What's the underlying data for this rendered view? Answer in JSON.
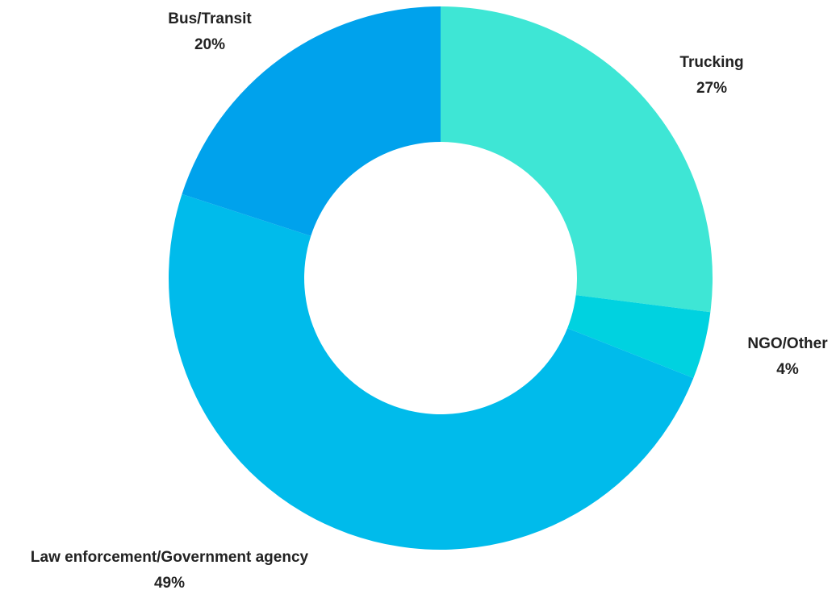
{
  "chart_data": {
    "type": "pie",
    "donut": true,
    "title": "",
    "categories": [
      "Trucking",
      "NGO/Other",
      "Law enforcement/Government agency",
      "Bus/Transit"
    ],
    "values": [
      27,
      4,
      49,
      20
    ],
    "value_labels": [
      "27%",
      "4%",
      "49%",
      "20%"
    ],
    "colors": [
      "#3ee6d5",
      "#00d2e0",
      "#00bbeb",
      "#00a2ec"
    ],
    "start": "12 o'clock",
    "direction": "clockwise",
    "legend": "none"
  }
}
